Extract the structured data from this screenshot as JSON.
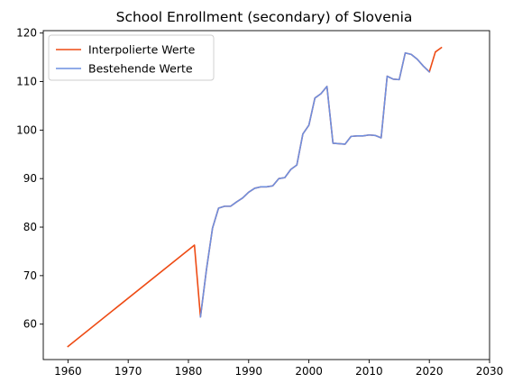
{
  "chart_data": {
    "type": "line",
    "title": "School Enrollment (secondary) of Slovenia",
    "xlabel": "",
    "ylabel": "",
    "xlim": [
      1955.9,
      2030
    ],
    "ylim": [
      52.7,
      120.5
    ],
    "xticks": [
      1960,
      1970,
      1980,
      1990,
      2000,
      2010,
      2020,
      2030
    ],
    "yticks": [
      60,
      70,
      80,
      90,
      100,
      110,
      120
    ],
    "grid": false,
    "legend_position": "top-left",
    "series": [
      {
        "name": "Interpolierte Werte",
        "color": "#ee4b14",
        "x": [
          1960,
          1981,
          1982,
          1983,
          1984,
          1985,
          1986,
          1987,
          1988,
          1989,
          1990,
          1991,
          1992,
          1993,
          1994,
          1995,
          1996,
          1997,
          1998,
          1999,
          2000,
          2001,
          2002,
          2003,
          2004,
          2005,
          2006,
          2007,
          2008,
          2009,
          2010,
          2011,
          2012,
          2013,
          2014,
          2015,
          2016,
          2017,
          2018,
          2019,
          2020,
          2021,
          2022
        ],
        "y": [
          55.4,
          76.3,
          61.5,
          71.3,
          79.8,
          83.9,
          84.3,
          84.3,
          85.2,
          86.0,
          87.2,
          88.0,
          88.3,
          88.3,
          88.5,
          90.0,
          90.2,
          91.9,
          92.8,
          99.2,
          101.0,
          106.6,
          107.5,
          109.0,
          97.3,
          97.2,
          97.1,
          98.7,
          98.8,
          98.8,
          99.0,
          98.9,
          98.4,
          111.1,
          110.5,
          110.4,
          115.9,
          115.6,
          114.6,
          113.2,
          112.0,
          116.1,
          117.0
        ]
      },
      {
        "name": "Bestehende Werte",
        "color": "#6d8fe0",
        "x": [
          1982,
          1983,
          1984,
          1985,
          1986,
          1987,
          1988,
          1989,
          1990,
          1991,
          1992,
          1993,
          1994,
          1995,
          1996,
          1997,
          1998,
          1999,
          2000,
          2001,
          2002,
          2003,
          2004,
          2005,
          2006,
          2007,
          2008,
          2009,
          2010,
          2011,
          2012,
          2013,
          2014,
          2015,
          2016,
          2017,
          2018,
          2019,
          2020
        ],
        "y": [
          61.5,
          71.3,
          79.8,
          83.9,
          84.3,
          84.3,
          85.2,
          86.0,
          87.2,
          88.0,
          88.3,
          88.3,
          88.5,
          90.0,
          90.2,
          91.9,
          92.8,
          99.2,
          101.0,
          106.6,
          107.5,
          109.0,
          97.3,
          97.2,
          97.1,
          98.7,
          98.8,
          98.8,
          99.0,
          98.9,
          98.4,
          111.1,
          110.5,
          110.4,
          115.9,
          115.6,
          114.6,
          113.2,
          112.0
        ]
      }
    ]
  }
}
